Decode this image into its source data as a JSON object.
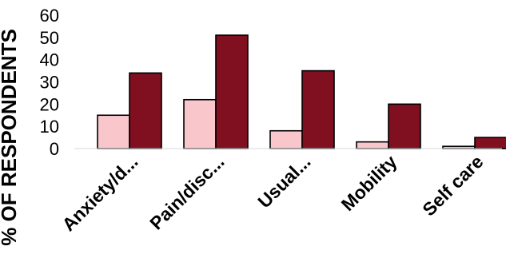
{
  "chart_data": {
    "type": "bar",
    "title": "",
    "xlabel": "",
    "ylabel": "% OF RESPONDENTS",
    "ylim": [
      0,
      60
    ],
    "yticks": [
      0,
      10,
      20,
      30,
      40,
      50,
      60
    ],
    "grid": false,
    "legend": "none",
    "categories": [
      "Anxiety/d...",
      "Pain/disc...",
      "Usual...",
      "Mobility",
      "Self care"
    ],
    "series": [
      {
        "color": "#f9c6cc",
        "values": [
          15,
          22,
          8,
          3,
          1
        ]
      },
      {
        "color": "#800f1f",
        "values": [
          34,
          51,
          35,
          20,
          5
        ]
      }
    ]
  }
}
